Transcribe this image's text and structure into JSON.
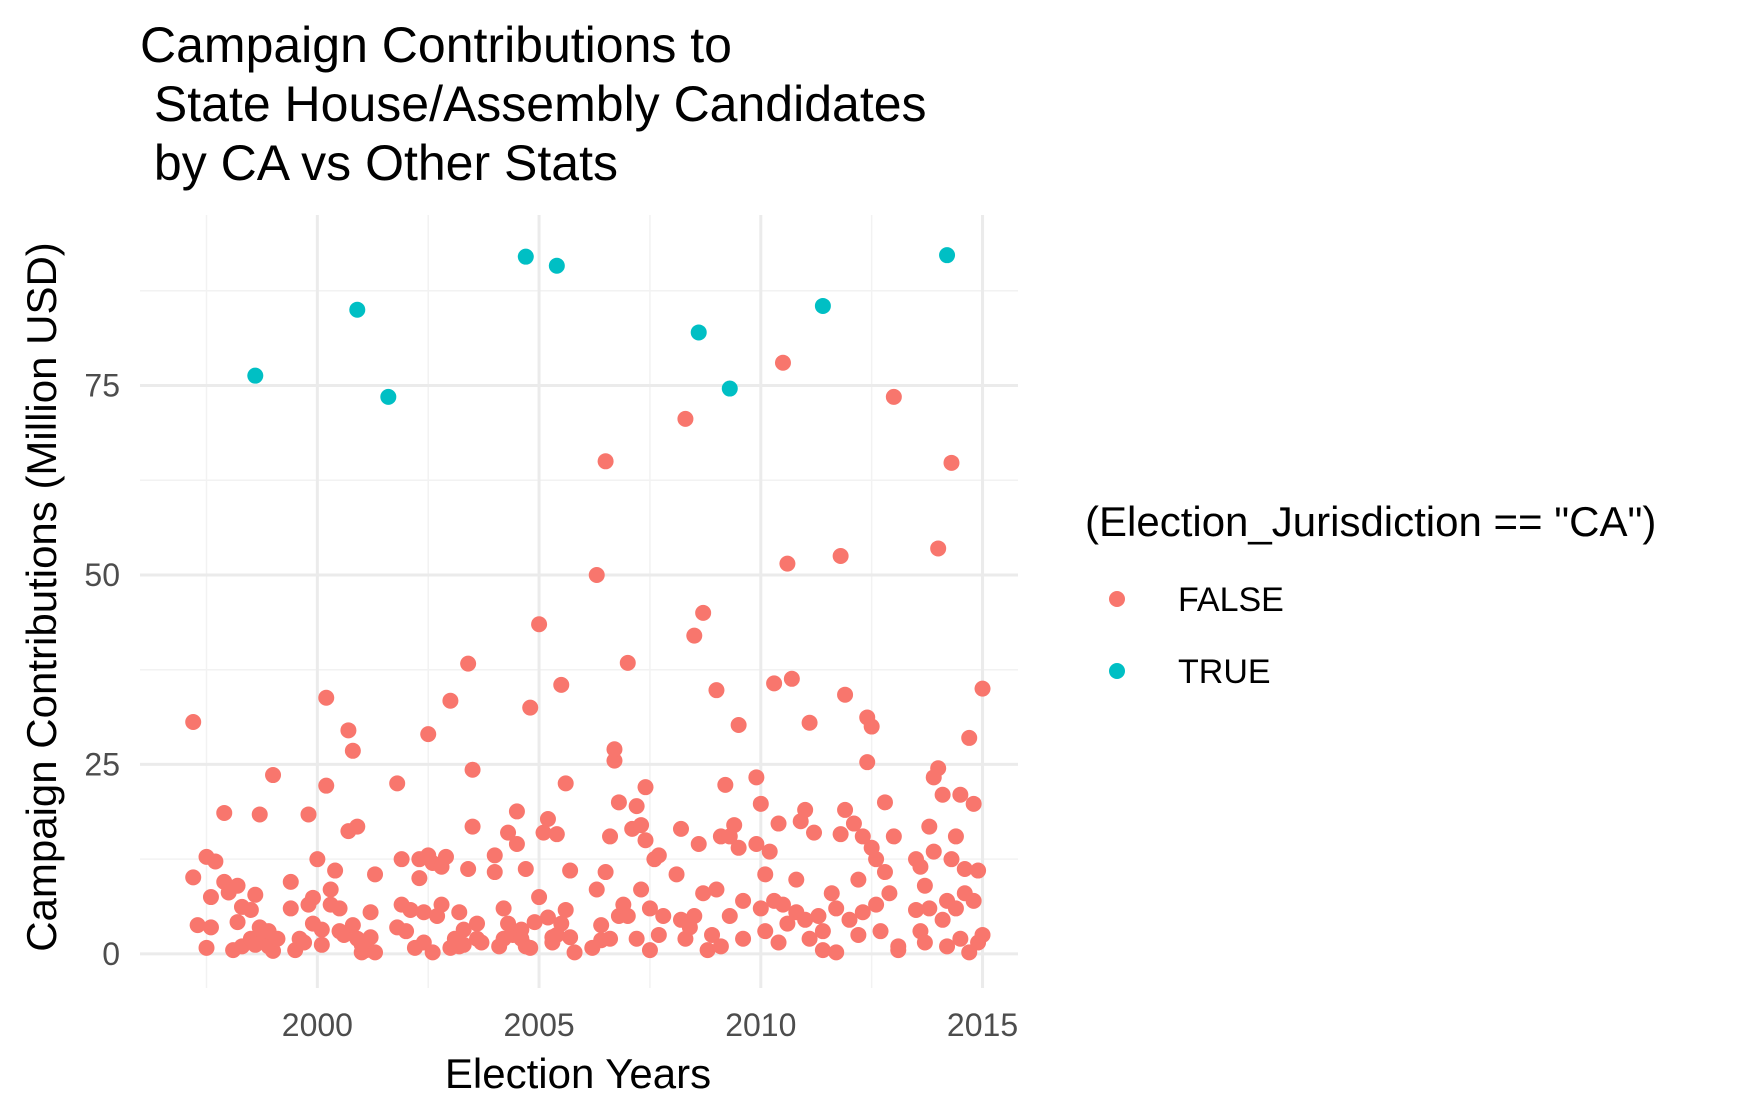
{
  "chart_data": {
    "type": "scatter",
    "title_lines": [
      "Campaign Contributions to",
      " State House/Assembly Candidates",
      " by CA vs Other Stats"
    ],
    "xlabel": "Election Years",
    "ylabel": "Campaign Contributions (Million USD)",
    "xlim": [
      1996,
      2015.8
    ],
    "ylim": [
      -4.5,
      97.5
    ],
    "x_ticks": [
      2000,
      2005,
      2010,
      2015
    ],
    "x_tick_labels": [
      "2000",
      "2005",
      "2010",
      "2015"
    ],
    "y_ticks": [
      0,
      25,
      50,
      75
    ],
    "y_tick_labels": [
      "0",
      "25",
      "50",
      "75"
    ],
    "grid": true,
    "legend": {
      "title": "(Election_Jurisdiction == \"CA\")",
      "placement": "right",
      "entries": [
        "FALSE",
        "TRUE"
      ]
    },
    "series": [
      {
        "name": "FALSE",
        "color": "#F8766D",
        "points": [
          [
            1997.2,
            30.6
          ],
          [
            1997.2,
            10.1
          ],
          [
            1997.3,
            3.8
          ],
          [
            1997.5,
            12.8
          ],
          [
            1997.5,
            0.8
          ],
          [
            1997.6,
            7.5
          ],
          [
            1997.6,
            3.5
          ],
          [
            1997.7,
            12.2
          ],
          [
            1997.9,
            18.6
          ],
          [
            1997.9,
            9.5
          ],
          [
            1998.0,
            8.1
          ],
          [
            1998.1,
            0.5
          ],
          [
            1998.2,
            4.2
          ],
          [
            1998.2,
            9.0
          ],
          [
            1998.3,
            1.0
          ],
          [
            1998.3,
            6.2
          ],
          [
            1998.5,
            2.0
          ],
          [
            1998.5,
            5.8
          ],
          [
            1998.6,
            1.2
          ],
          [
            1998.6,
            7.8
          ],
          [
            1998.7,
            18.4
          ],
          [
            1998.7,
            3.5
          ],
          [
            1998.8,
            2.5
          ],
          [
            1998.9,
            1.0
          ],
          [
            1998.9,
            3.0
          ],
          [
            1999.0,
            23.6
          ],
          [
            1999.0,
            0.4
          ],
          [
            1999.1,
            2.0
          ],
          [
            1999.4,
            9.5
          ],
          [
            1999.4,
            6.0
          ],
          [
            1999.5,
            0.5
          ],
          [
            1999.6,
            2.0
          ],
          [
            1999.7,
            1.5
          ],
          [
            1999.8,
            18.4
          ],
          [
            1999.8,
            6.5
          ],
          [
            1999.9,
            7.4
          ],
          [
            1999.9,
            4.0
          ],
          [
            2000.0,
            12.5
          ],
          [
            2000.1,
            3.2
          ],
          [
            2000.1,
            1.2
          ],
          [
            2000.2,
            33.8
          ],
          [
            2000.2,
            22.2
          ],
          [
            2000.3,
            6.5
          ],
          [
            2000.3,
            8.5
          ],
          [
            2000.4,
            11.0
          ],
          [
            2000.5,
            6.0
          ],
          [
            2000.5,
            3.0
          ],
          [
            2000.6,
            2.5
          ],
          [
            2000.7,
            29.5
          ],
          [
            2000.7,
            16.2
          ],
          [
            2000.8,
            26.8
          ],
          [
            2000.8,
            3.8
          ],
          [
            2000.9,
            16.8
          ],
          [
            2000.9,
            2.0
          ],
          [
            2001.0,
            1.2
          ],
          [
            2001.0,
            0.2
          ],
          [
            2001.1,
            0.5
          ],
          [
            2001.2,
            5.5
          ],
          [
            2001.2,
            2.2
          ],
          [
            2001.3,
            10.5
          ],
          [
            2001.3,
            0.2
          ],
          [
            2001.8,
            22.5
          ],
          [
            2001.8,
            3.5
          ],
          [
            2001.9,
            6.5
          ],
          [
            2001.9,
            12.5
          ],
          [
            2002.0,
            3.0
          ],
          [
            2002.1,
            5.8
          ],
          [
            2002.2,
            0.8
          ],
          [
            2002.3,
            10.0
          ],
          [
            2002.3,
            12.5
          ],
          [
            2002.4,
            1.5
          ],
          [
            2002.4,
            5.5
          ],
          [
            2002.5,
            13.0
          ],
          [
            2002.5,
            29.0
          ],
          [
            2002.6,
            12.0
          ],
          [
            2002.6,
            0.2
          ],
          [
            2002.7,
            5.0
          ],
          [
            2002.8,
            11.5
          ],
          [
            2002.8,
            6.5
          ],
          [
            2002.9,
            12.8
          ],
          [
            2003.0,
            0.8
          ],
          [
            2003.0,
            33.4
          ],
          [
            2003.1,
            2.0
          ],
          [
            2003.2,
            1.0
          ],
          [
            2003.2,
            5.5
          ],
          [
            2003.3,
            1.2
          ],
          [
            2003.3,
            3.2
          ],
          [
            2003.4,
            38.3
          ],
          [
            2003.4,
            11.2
          ],
          [
            2003.5,
            16.8
          ],
          [
            2003.5,
            24.3
          ],
          [
            2003.6,
            2.0
          ],
          [
            2003.6,
            4.0
          ],
          [
            2003.7,
            1.5
          ],
          [
            2004.0,
            13.0
          ],
          [
            2004.0,
            10.8
          ],
          [
            2004.1,
            1.0
          ],
          [
            2004.2,
            2.0
          ],
          [
            2004.2,
            6.0
          ],
          [
            2004.3,
            16.0
          ],
          [
            2004.3,
            4.0
          ],
          [
            2004.4,
            2.5
          ],
          [
            2004.5,
            14.5
          ],
          [
            2004.5,
            18.8
          ],
          [
            2004.6,
            3.2
          ],
          [
            2004.6,
            2.0
          ],
          [
            2004.7,
            11.2
          ],
          [
            2004.7,
            1.0
          ],
          [
            2004.8,
            32.5
          ],
          [
            2004.8,
            0.8
          ],
          [
            2004.9,
            4.2
          ],
          [
            2005.0,
            43.5
          ],
          [
            2005.0,
            7.5
          ],
          [
            2005.1,
            16.0
          ],
          [
            2005.2,
            17.8
          ],
          [
            2005.2,
            4.8
          ],
          [
            2005.3,
            2.2
          ],
          [
            2005.3,
            1.5
          ],
          [
            2005.4,
            15.8
          ],
          [
            2005.4,
            2.5
          ],
          [
            2005.5,
            35.5
          ],
          [
            2005.5,
            4.0
          ],
          [
            2005.6,
            22.5
          ],
          [
            2005.6,
            5.8
          ],
          [
            2005.7,
            11.0
          ],
          [
            2005.7,
            2.2
          ],
          [
            2005.8,
            0.2
          ],
          [
            2006.2,
            0.8
          ],
          [
            2006.3,
            50.0
          ],
          [
            2006.3,
            8.5
          ],
          [
            2006.4,
            3.8
          ],
          [
            2006.4,
            1.8
          ],
          [
            2006.5,
            65.0
          ],
          [
            2006.5,
            10.8
          ],
          [
            2006.6,
            2.0
          ],
          [
            2006.6,
            15.5
          ],
          [
            2006.7,
            25.5
          ],
          [
            2006.7,
            27.0
          ],
          [
            2006.8,
            20.0
          ],
          [
            2006.8,
            5.0
          ],
          [
            2006.9,
            6.5
          ],
          [
            2007.0,
            38.4
          ],
          [
            2007.0,
            5.0
          ],
          [
            2007.1,
            16.5
          ],
          [
            2007.2,
            19.5
          ],
          [
            2007.2,
            2.0
          ],
          [
            2007.3,
            17.0
          ],
          [
            2007.3,
            8.5
          ],
          [
            2007.4,
            22.0
          ],
          [
            2007.4,
            15.0
          ],
          [
            2007.5,
            6.0
          ],
          [
            2007.5,
            0.5
          ],
          [
            2007.6,
            12.5
          ],
          [
            2007.7,
            13.0
          ],
          [
            2007.7,
            2.5
          ],
          [
            2007.8,
            5.0
          ],
          [
            2008.1,
            10.5
          ],
          [
            2008.2,
            16.5
          ],
          [
            2008.2,
            4.5
          ],
          [
            2008.3,
            70.6
          ],
          [
            2008.3,
            2.0
          ],
          [
            2008.4,
            3.5
          ],
          [
            2008.5,
            42.0
          ],
          [
            2008.5,
            5.0
          ],
          [
            2008.6,
            14.5
          ],
          [
            2008.7,
            45.0
          ],
          [
            2008.7,
            8.0
          ],
          [
            2008.8,
            0.5
          ],
          [
            2008.9,
            2.5
          ],
          [
            2009.0,
            34.8
          ],
          [
            2009.0,
            8.5
          ],
          [
            2009.1,
            15.5
          ],
          [
            2009.1,
            1.0
          ],
          [
            2009.2,
            22.3
          ],
          [
            2009.3,
            15.5
          ],
          [
            2009.3,
            5.0
          ],
          [
            2009.4,
            17.0
          ],
          [
            2009.5,
            30.2
          ],
          [
            2009.5,
            14.0
          ],
          [
            2009.6,
            7.0
          ],
          [
            2009.6,
            2.0
          ],
          [
            2009.9,
            23.3
          ],
          [
            2009.9,
            14.5
          ],
          [
            2010.0,
            19.8
          ],
          [
            2010.0,
            6.0
          ],
          [
            2010.1,
            10.5
          ],
          [
            2010.1,
            3.0
          ],
          [
            2010.2,
            13.5
          ],
          [
            2010.3,
            35.7
          ],
          [
            2010.3,
            7.0
          ],
          [
            2010.4,
            17.2
          ],
          [
            2010.4,
            1.5
          ],
          [
            2010.5,
            78.0
          ],
          [
            2010.5,
            6.5
          ],
          [
            2010.6,
            51.5
          ],
          [
            2010.6,
            4.0
          ],
          [
            2010.7,
            36.3
          ],
          [
            2010.8,
            9.8
          ],
          [
            2010.8,
            5.5
          ],
          [
            2010.9,
            17.5
          ],
          [
            2011.0,
            19.0
          ],
          [
            2011.0,
            4.5
          ],
          [
            2011.1,
            30.5
          ],
          [
            2011.1,
            2.0
          ],
          [
            2011.2,
            16.0
          ],
          [
            2011.3,
            5.0
          ],
          [
            2011.4,
            3.0
          ],
          [
            2011.4,
            0.5
          ],
          [
            2011.6,
            8.0
          ],
          [
            2011.7,
            6.0
          ],
          [
            2011.7,
            0.2
          ],
          [
            2011.8,
            52.5
          ],
          [
            2011.8,
            15.8
          ],
          [
            2011.9,
            34.2
          ],
          [
            2011.9,
            19.0
          ],
          [
            2012.0,
            4.5
          ],
          [
            2012.1,
            17.2
          ],
          [
            2012.2,
            9.8
          ],
          [
            2012.2,
            2.5
          ],
          [
            2012.3,
            15.5
          ],
          [
            2012.3,
            5.5
          ],
          [
            2012.4,
            31.2
          ],
          [
            2012.4,
            25.3
          ],
          [
            2012.5,
            30.0
          ],
          [
            2012.5,
            14.0
          ],
          [
            2012.6,
            12.5
          ],
          [
            2012.6,
            6.5
          ],
          [
            2012.7,
            3.0
          ],
          [
            2012.8,
            10.8
          ],
          [
            2012.8,
            20.0
          ],
          [
            2012.9,
            8.0
          ],
          [
            2013.0,
            73.5
          ],
          [
            2013.0,
            15.5
          ],
          [
            2013.1,
            1.0
          ],
          [
            2013.1,
            0.5
          ],
          [
            2013.5,
            12.5
          ],
          [
            2013.5,
            5.8
          ],
          [
            2013.6,
            11.5
          ],
          [
            2013.6,
            3.0
          ],
          [
            2013.7,
            9.0
          ],
          [
            2013.7,
            1.5
          ],
          [
            2013.8,
            16.8
          ],
          [
            2013.8,
            6.0
          ],
          [
            2013.9,
            13.5
          ],
          [
            2013.9,
            23.3
          ],
          [
            2014.0,
            53.5
          ],
          [
            2014.0,
            24.5
          ],
          [
            2014.1,
            21.0
          ],
          [
            2014.1,
            4.5
          ],
          [
            2014.2,
            7.0
          ],
          [
            2014.2,
            1.0
          ],
          [
            2014.3,
            12.5
          ],
          [
            2014.3,
            64.8
          ],
          [
            2014.4,
            15.5
          ],
          [
            2014.4,
            6.0
          ],
          [
            2014.5,
            21.0
          ],
          [
            2014.5,
            2.0
          ],
          [
            2014.6,
            11.2
          ],
          [
            2014.6,
            8.0
          ],
          [
            2014.7,
            28.5
          ],
          [
            2014.7,
            0.2
          ],
          [
            2014.8,
            19.8
          ],
          [
            2014.8,
            7.0
          ],
          [
            2014.9,
            1.5
          ],
          [
            2014.9,
            11.0
          ],
          [
            2015.0,
            2.5
          ],
          [
            2015.0,
            35.0
          ]
        ]
      },
      {
        "name": "TRUE",
        "color": "#00BFC4",
        "points": [
          [
            1998.6,
            76.3
          ],
          [
            2000.9,
            85.0
          ],
          [
            2001.6,
            73.5
          ],
          [
            2004.7,
            92.0
          ],
          [
            2005.4,
            90.8
          ],
          [
            2008.6,
            82.0
          ],
          [
            2009.3,
            74.6
          ],
          [
            2011.4,
            85.5
          ],
          [
            2014.2,
            92.2
          ]
        ]
      }
    ]
  }
}
